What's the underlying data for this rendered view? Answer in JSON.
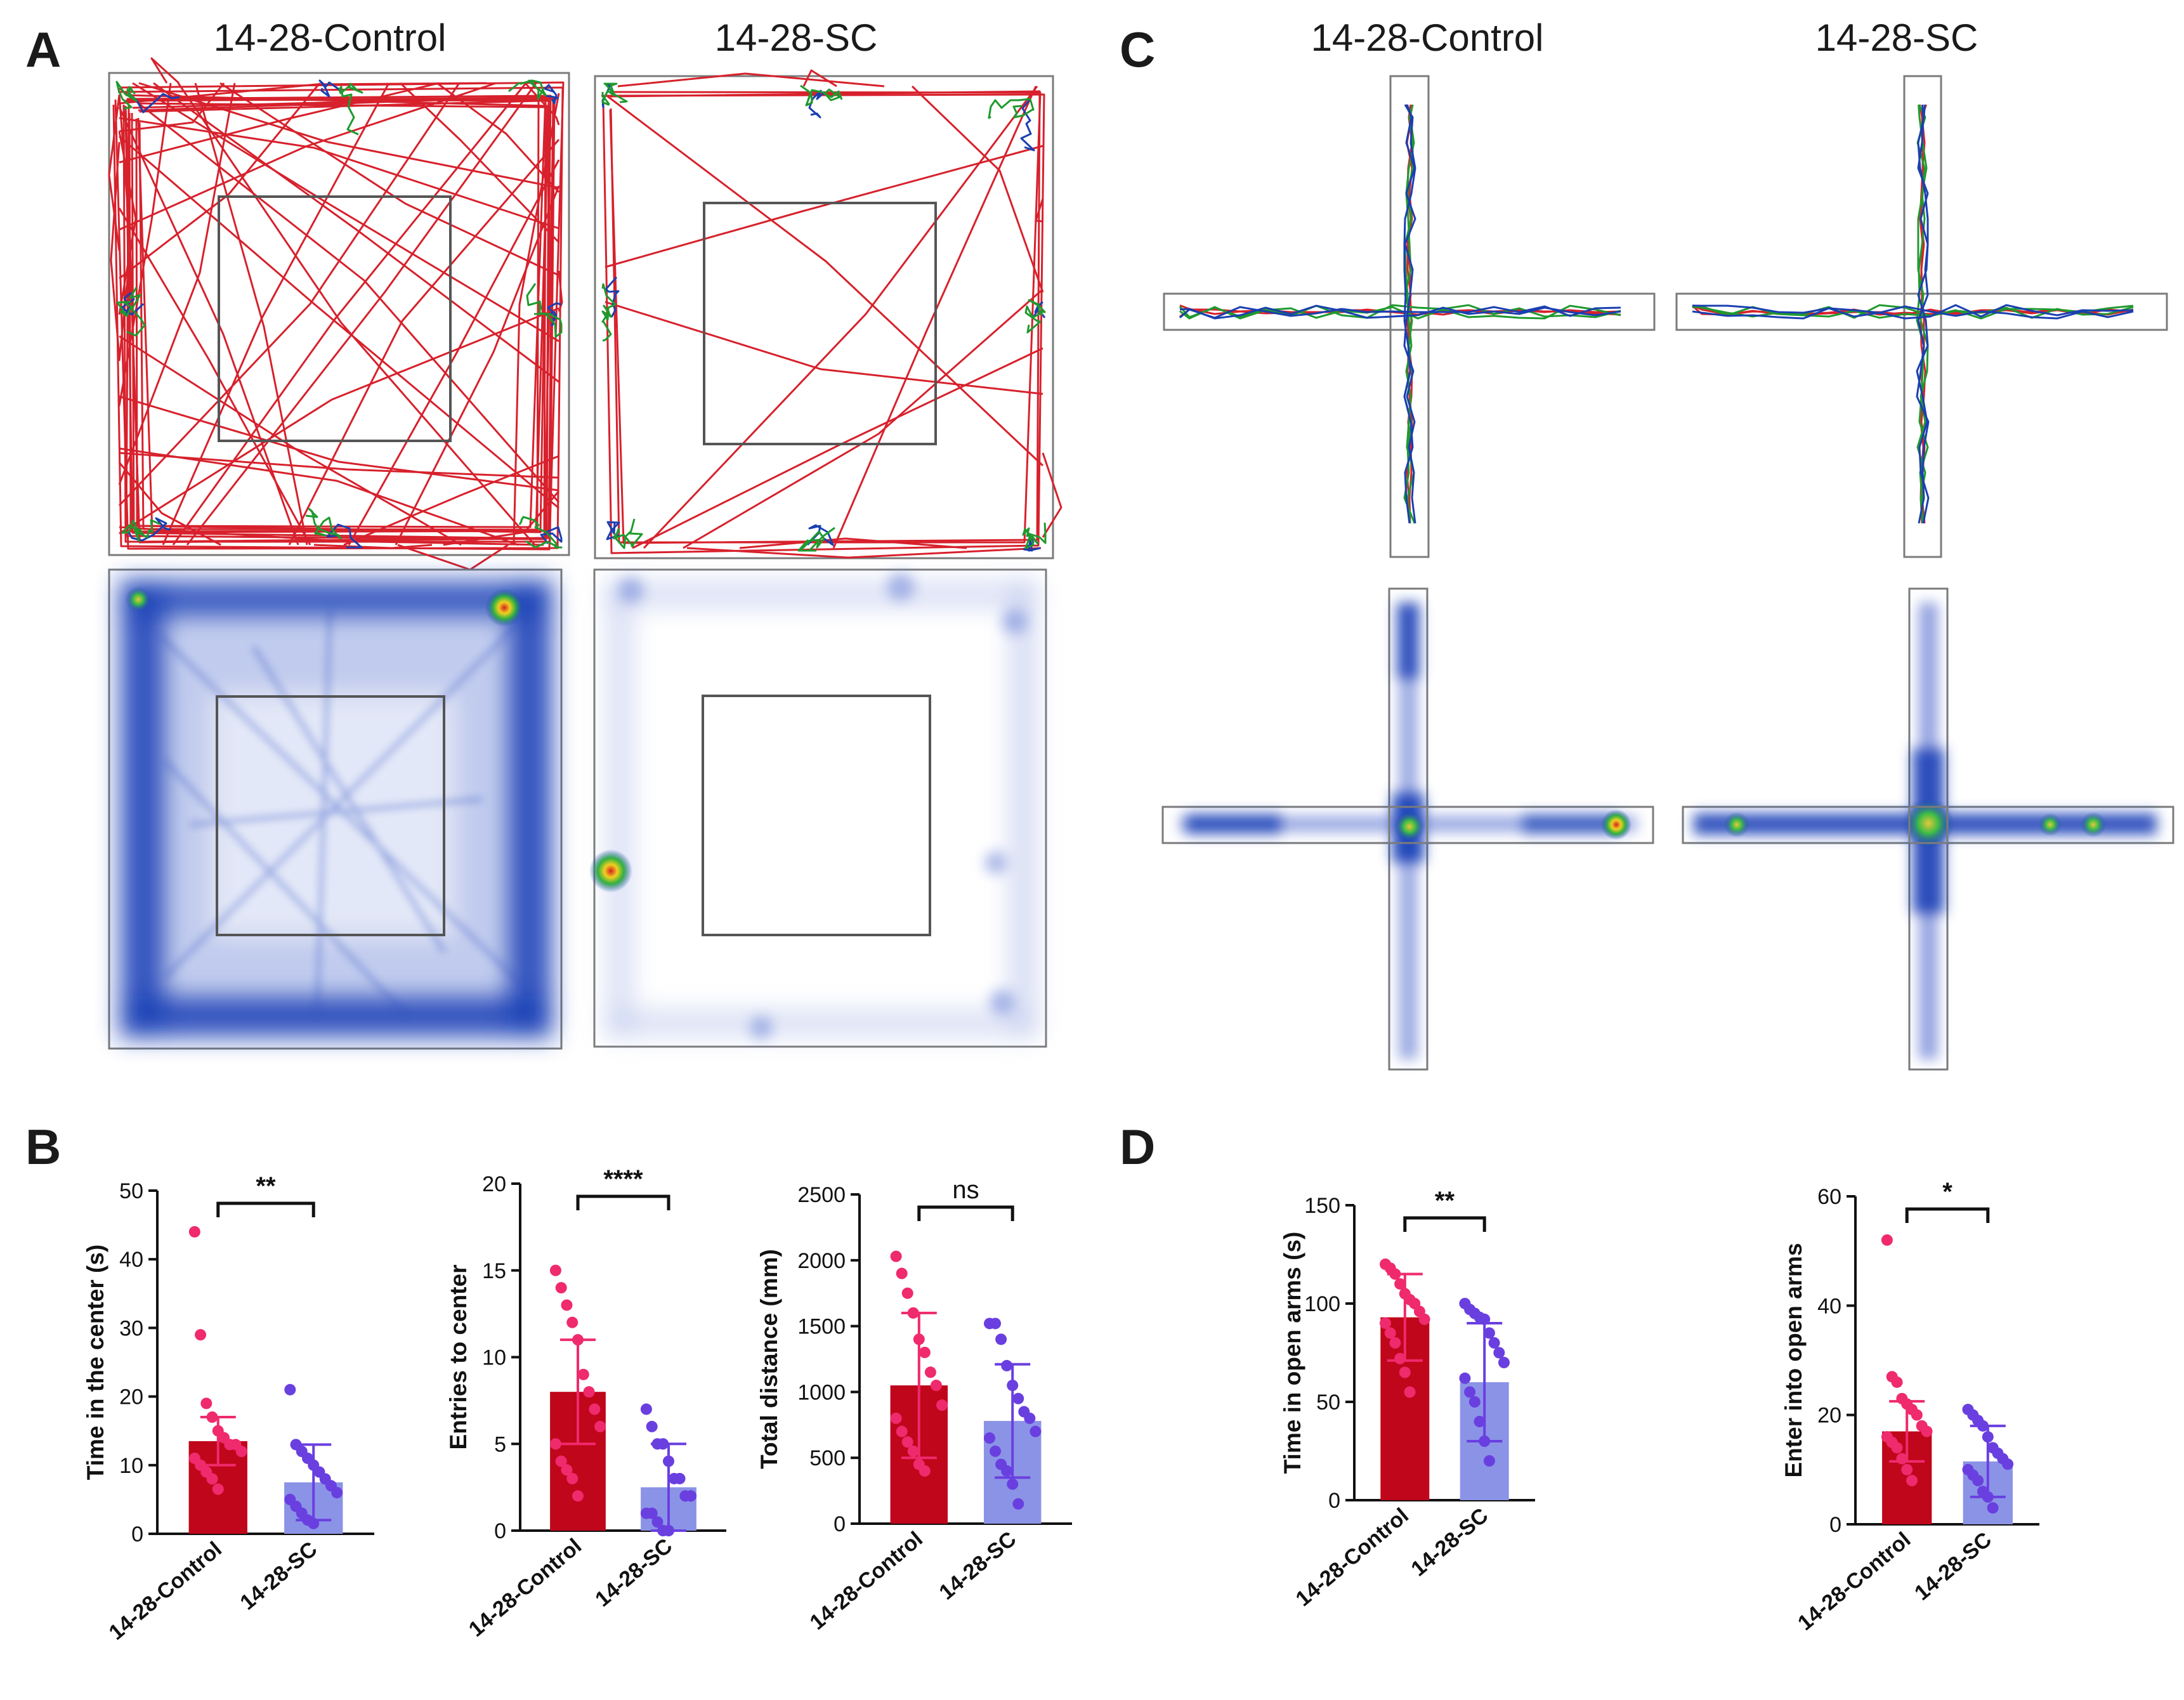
{
  "panels": {
    "a": "A",
    "b": "B",
    "c": "C",
    "d": "D"
  },
  "headers": {
    "a_left": "14-28-Control",
    "a_right": "14-28-SC",
    "c_left": "14-28-Control",
    "c_right": "14-28-SC"
  },
  "colors": {
    "control_bar": "#c0061b",
    "control_dots": "#ef2a6d",
    "sc_bar": "#8b93e6",
    "sc_dots": "#6a3fe0",
    "track_red": "#d7212c",
    "track_green": "#1f9a2e",
    "track_blue": "#1a3fb0",
    "heat_blue": "#1e44b8",
    "frame": "#7b7b7b"
  },
  "chart_data": [
    {
      "id": "b1",
      "type": "bar",
      "categories": [
        "14-28-Control",
        "14-28-SC"
      ],
      "values": [
        13.5,
        7.5
      ],
      "errors": [
        3.5,
        5.5
      ],
      "points": [
        [
          44,
          29,
          19,
          17,
          15,
          14,
          13,
          13,
          12,
          11,
          10,
          9,
          8,
          6.5
        ],
        [
          21,
          13,
          12,
          11,
          10,
          9,
          8,
          7,
          6,
          5,
          4,
          3,
          2,
          1.5
        ]
      ],
      "ylabel": "Time in the center (s)",
      "ylim": [
        0,
        50
      ],
      "yticks": [
        0,
        10,
        20,
        30,
        40,
        50
      ],
      "significance": "**"
    },
    {
      "id": "b2",
      "type": "bar",
      "categories": [
        "14-28-Control",
        "14-28-SC"
      ],
      "values": [
        8,
        2.5
      ],
      "errors": [
        3,
        2.5
      ],
      "points": [
        [
          15,
          14,
          13,
          12,
          11,
          9,
          8,
          7,
          6,
          5,
          4,
          3.5,
          3,
          2
        ],
        [
          7,
          6,
          5,
          5,
          4,
          3,
          3,
          2,
          2,
          1,
          1,
          0.5,
          0,
          0
        ]
      ],
      "ylabel": "Entries to center",
      "ylim": [
        0,
        20
      ],
      "yticks": [
        0,
        5,
        10,
        15,
        20
      ],
      "significance": "****"
    },
    {
      "id": "b3",
      "type": "bar",
      "categories": [
        "14-28-Control",
        "14-28-SC"
      ],
      "values": [
        1050,
        780
      ],
      "errors": [
        550,
        430
      ],
      "points": [
        [
          2030,
          1900,
          1750,
          1600,
          1400,
          1300,
          1150,
          1050,
          900,
          800,
          700,
          620,
          550,
          450,
          400
        ],
        [
          1520,
          1520,
          1400,
          1200,
          1050,
          950,
          850,
          800,
          700,
          650,
          550,
          450,
          400,
          300,
          150
        ]
      ],
      "ylabel": "Total distance (mm)",
      "ylim": [
        0,
        2500
      ],
      "yticks": [
        0,
        500,
        1000,
        1500,
        2000,
        2500
      ],
      "significance": "ns"
    },
    {
      "id": "d1",
      "type": "bar",
      "categories": [
        "14-28-Control",
        "14-28-SC"
      ],
      "values": [
        93,
        60
      ],
      "errors": [
        22,
        30
      ],
      "points": [
        [
          120,
          118,
          115,
          110,
          105,
          102,
          100,
          96,
          92,
          90,
          85,
          80,
          72,
          65,
          55
        ],
        [
          100,
          97,
          95,
          93,
          92,
          85,
          80,
          75,
          70,
          62,
          55,
          50,
          40,
          30,
          20
        ]
      ],
      "ylabel": "Time in open arms (s)",
      "ylim": [
        0,
        150
      ],
      "yticks": [
        0,
        50,
        100,
        150
      ],
      "significance": "**"
    },
    {
      "id": "d2",
      "type": "bar",
      "categories": [
        "14-28-Control",
        "14-28-SC"
      ],
      "values": [
        17,
        11.5
      ],
      "errors": [
        5.5,
        6.5
      ],
      "points": [
        [
          52,
          27,
          26,
          23,
          22,
          21,
          20,
          18,
          17,
          16,
          15,
          14,
          12,
          10,
          8
        ],
        [
          21,
          20,
          19,
          18,
          16,
          14,
          13,
          12,
          11,
          10,
          9,
          8,
          6,
          5,
          3
        ]
      ],
      "ylabel": "Enter into open arms",
      "ylim": [
        0,
        60
      ],
      "yticks": [
        0,
        20,
        40,
        60
      ],
      "significance": "*"
    }
  ]
}
